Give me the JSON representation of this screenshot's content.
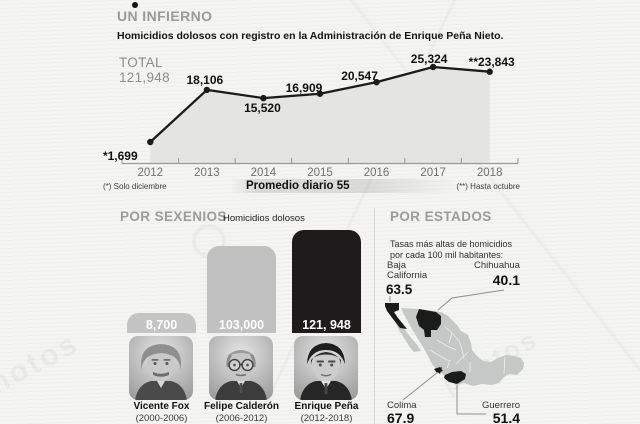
{
  "watermark_text": "photos",
  "chart_data": [
    {
      "type": "area",
      "title": "UN INFIERNO",
      "subtitle": "Homicidios dolosos con registro en la Administración de Enrique Peña Nieto.",
      "categories": [
        "2012",
        "2013",
        "2014",
        "2015",
        "2016",
        "2017",
        "2018"
      ],
      "values": [
        1699,
        18106,
        15520,
        16909,
        20547,
        25324,
        23843
      ],
      "point_labels": [
        "*1,699",
        "18,106",
        "15,520",
        "16,909",
        "20,547",
        "25,324",
        "**23,843"
      ],
      "total_label": "TOTAL",
      "total_value": "121,948",
      "footnotes": {
        "left": "(*) Solo diciembre",
        "center": "Promedio diario 55",
        "right": "(**) Hasta octubre"
      },
      "ylim": [
        0,
        26000
      ],
      "grid": false,
      "line_color": "#1b1b1b",
      "fill_color": "#e4e4e2"
    },
    {
      "type": "bar",
      "title": "POR SEXENIOS",
      "subtitle": "Homicidios dolosos",
      "categories": [
        "Vicente Fox",
        "Felipe Calderón",
        "Enrique Peña"
      ],
      "years": [
        "(2000-2006)",
        "(2006-2012)",
        "(2012-2018)"
      ],
      "values": [
        8700,
        103000,
        121948
      ],
      "value_labels": [
        "8,700",
        "103,000",
        "121, 948"
      ],
      "colors": [
        "#c4c4c4",
        "#c1c1c1",
        "#1d1b1b"
      ]
    },
    {
      "type": "map",
      "title": "POR ESTADOS",
      "subtitle": "Tasas más altas de homicidios por cada 100 mil habitantes:",
      "states": [
        {
          "name": "Baja California",
          "value": "63.5"
        },
        {
          "name": "Chihuahua",
          "value": "40.1"
        },
        {
          "name": "Colima",
          "value": "67.9"
        },
        {
          "name": "Guerrero",
          "value": "51.4"
        }
      ],
      "highlight_color": "#1b1b1b",
      "base_color": "#c6c8c8"
    }
  ]
}
